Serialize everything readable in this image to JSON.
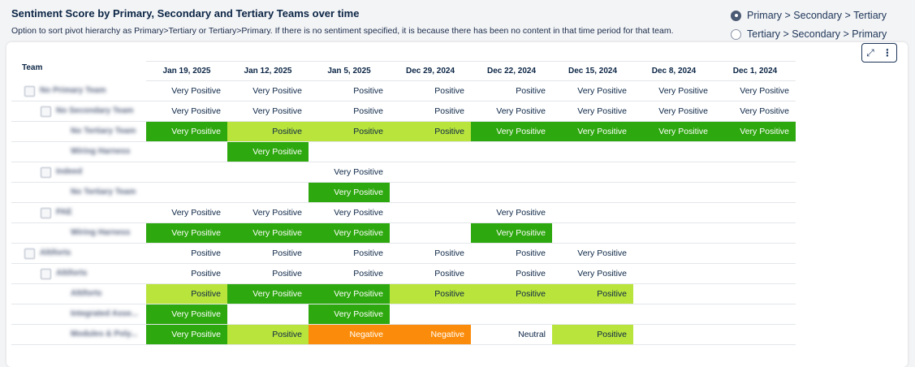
{
  "header": {
    "title": "Sentiment Score by Primary, Secondary and Tertiary Teams over time",
    "subtitle": "Option to sort pivot hierarchy as Primary>Tertiary or Tertiary>Primary. If there is no sentiment specified, it is because there has been no content in that time period for that team."
  },
  "sort_options": [
    {
      "label": "Primary > Secondary > Tertiary",
      "selected": true
    },
    {
      "label": "Tertiary > Secondary > Primary",
      "selected": false
    }
  ],
  "table": {
    "corner": "Team",
    "columns": [
      "Jan 19, 2025",
      "Jan 12, 2025",
      "Jan 5, 2025",
      "Dec 29, 2024",
      "Dec 22, 2024",
      "Dec 15, 2024",
      "Dec 8, 2024",
      "Dec 1, 2024"
    ],
    "colors": {
      "Very Positive": "#2ea80f",
      "Positive": "#b8e43c",
      "Negative": "#fb8c0b",
      "Neutral": "#ffffff"
    },
    "rows": [
      {
        "team": "No Primary Team",
        "level": 0,
        "colored": false,
        "cells": [
          "Very Positive",
          "Very Positive",
          "Positive",
          "Positive",
          "Positive",
          "Very Positive",
          "Very Positive",
          "Very Positive"
        ]
      },
      {
        "team": "No Secondary Team",
        "level": 1,
        "colored": false,
        "cells": [
          "Very Positive",
          "Very Positive",
          "Positive",
          "Positive",
          "Very Positive",
          "Very Positive",
          "Very Positive",
          "Very Positive"
        ]
      },
      {
        "team": "No Tertiary Team",
        "level": 2,
        "colored": true,
        "cells": [
          "Very Positive",
          "Positive",
          "Positive",
          "Positive",
          "Very Positive",
          "Very Positive",
          "Very Positive",
          "Very Positive"
        ]
      },
      {
        "team": "Wiring Harness",
        "level": 2,
        "colored": true,
        "cells": [
          null,
          "Very Positive",
          null,
          null,
          null,
          null,
          null,
          null
        ]
      },
      {
        "team": "Indeed",
        "level": 1,
        "colored": false,
        "cells": [
          null,
          null,
          "Very Positive",
          null,
          null,
          null,
          null,
          null
        ]
      },
      {
        "team": "No Tertiary Team",
        "level": 2,
        "colored": true,
        "cells": [
          null,
          null,
          "Very Positive",
          null,
          null,
          null,
          null,
          null
        ]
      },
      {
        "team": "PAE",
        "level": 1,
        "colored": false,
        "cells": [
          "Very Positive",
          "Very Positive",
          "Very Positive",
          null,
          "Very Positive",
          null,
          null,
          null
        ]
      },
      {
        "team": "Wiring Harness",
        "level": 2,
        "colored": true,
        "cells": [
          "Very Positive",
          "Very Positive",
          "Very Positive",
          null,
          "Very Positive",
          null,
          null,
          null
        ]
      },
      {
        "team": "Altiforts",
        "level": 0,
        "colored": false,
        "cells": [
          "Positive",
          "Positive",
          "Positive",
          "Positive",
          "Positive",
          "Very Positive",
          null,
          null
        ]
      },
      {
        "team": "Altiforts",
        "level": 1,
        "colored": false,
        "cells": [
          "Positive",
          "Positive",
          "Positive",
          "Positive",
          "Positive",
          "Very Positive",
          null,
          null
        ]
      },
      {
        "team": "Altiforts",
        "level": 2,
        "colored": true,
        "cells": [
          "Positive",
          "Very Positive",
          "Very Positive",
          "Positive",
          "Positive",
          "Positive",
          null,
          null
        ]
      },
      {
        "team": "Integrated Asse...",
        "level": 2,
        "colored": true,
        "cells": [
          "Very Positive",
          null,
          "Very Positive",
          null,
          null,
          null,
          null,
          null
        ]
      },
      {
        "team": "Modules & Poly...",
        "level": 2,
        "colored": true,
        "cells": [
          "Very Positive",
          "Positive",
          "Negative",
          "Negative",
          "Neutral",
          "Positive",
          null,
          null
        ]
      }
    ]
  }
}
